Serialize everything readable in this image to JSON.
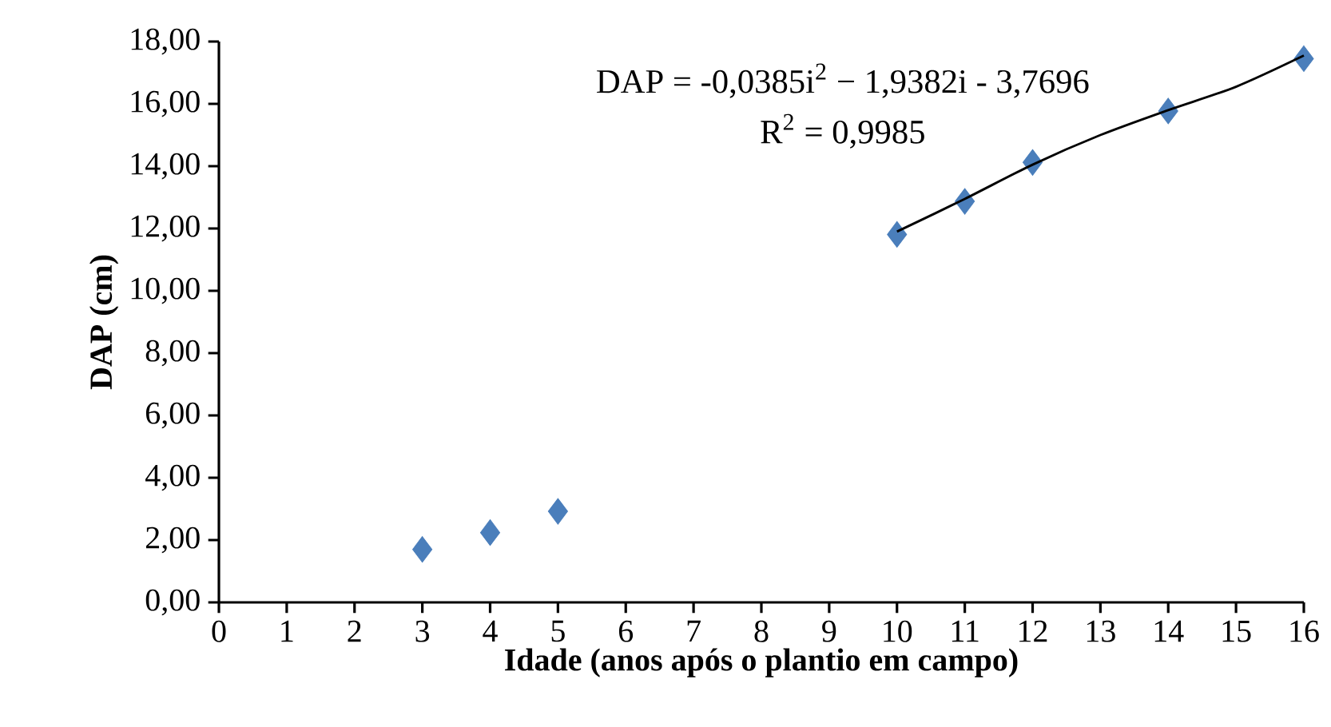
{
  "chart_data": {
    "type": "scatter",
    "xlabel": "Idade (anos após o plantio em campo)",
    "ylabel": "DAP (cm)",
    "xlim": [
      0,
      16
    ],
    "xticks": [
      0,
      1,
      2,
      3,
      4,
      5,
      6,
      7,
      8,
      9,
      10,
      11,
      12,
      13,
      14,
      15,
      16
    ],
    "ylim": [
      0,
      18
    ],
    "yticks": [
      {
        "value": 0,
        "label": "0,00"
      },
      {
        "value": 2,
        "label": "2,00"
      },
      {
        "value": 4,
        "label": "4,00"
      },
      {
        "value": 6,
        "label": "6,00"
      },
      {
        "value": 8,
        "label": "8,00"
      },
      {
        "value": 10,
        "label": "10,00"
      },
      {
        "value": 12,
        "label": "12,00"
      },
      {
        "value": 14,
        "label": "14,00"
      },
      {
        "value": 16,
        "label": "16,00"
      },
      {
        "value": 18,
        "label": "18,00"
      }
    ],
    "grid": false,
    "legend": false,
    "marker": "diamond",
    "series": [
      {
        "color": "#4a7ebb",
        "x": [
          3,
          4,
          5,
          10,
          11,
          12,
          14,
          16
        ],
        "values": [
          1.7,
          2.24,
          2.92,
          11.81,
          12.87,
          14.12,
          15.77,
          17.45
        ]
      },
      {
        "type": "line",
        "color": "#000000",
        "marker": "none",
        "line_style": "solid",
        "x": [
          10,
          11,
          12,
          13,
          14,
          15,
          16
        ],
        "values": [
          11.9,
          12.95,
          14.05,
          15.0,
          15.8,
          16.55,
          17.55
        ]
      }
    ],
    "annotations": [
      "DAP = -0,0385i$^{2}$ − 1,9382i - 3,7696",
      "R$^{2}$ = 0,9985"
    ]
  }
}
